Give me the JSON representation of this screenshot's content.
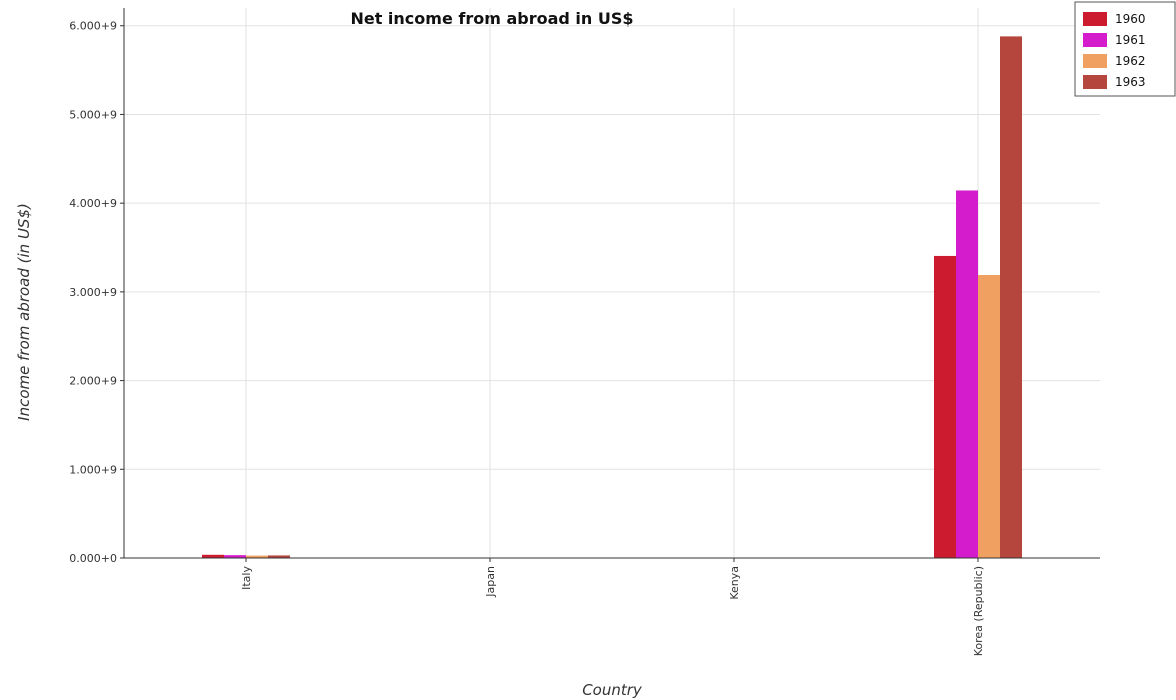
{
  "chart_data": {
    "type": "bar",
    "title": "Net income from abroad in US$",
    "xlabel": "Country",
    "ylabel": "Income from abroad (in US$)",
    "categories": [
      "Italy",
      "Japan",
      "Kenya",
      "Korea (Republic)"
    ],
    "series": [
      {
        "name": "1960",
        "color": "#cc1a2e",
        "values": [
          36000000,
          0,
          0,
          3405000000
        ]
      },
      {
        "name": "1961",
        "color": "#d41ccc",
        "values": [
          32000000,
          0,
          0,
          4143000000
        ]
      },
      {
        "name": "1962",
        "color": "#f0a060",
        "values": [
          27000000,
          0,
          0,
          3190000000
        ]
      },
      {
        "name": "1963",
        "color": "#b5463e",
        "values": [
          29000000,
          0,
          0,
          5880000000
        ]
      }
    ],
    "yticks": [
      0,
      1000000000,
      2000000000,
      3000000000,
      4000000000,
      5000000000,
      6000000000
    ],
    "ytick_labels": [
      "0.000+0",
      "1.000+9",
      "2.000+9",
      "3.000+9",
      "4.000+9",
      "5.000+9",
      "6.000+9"
    ],
    "ylim": [
      0,
      6200000000
    ],
    "grid": true,
    "legend_position": "top-right"
  }
}
